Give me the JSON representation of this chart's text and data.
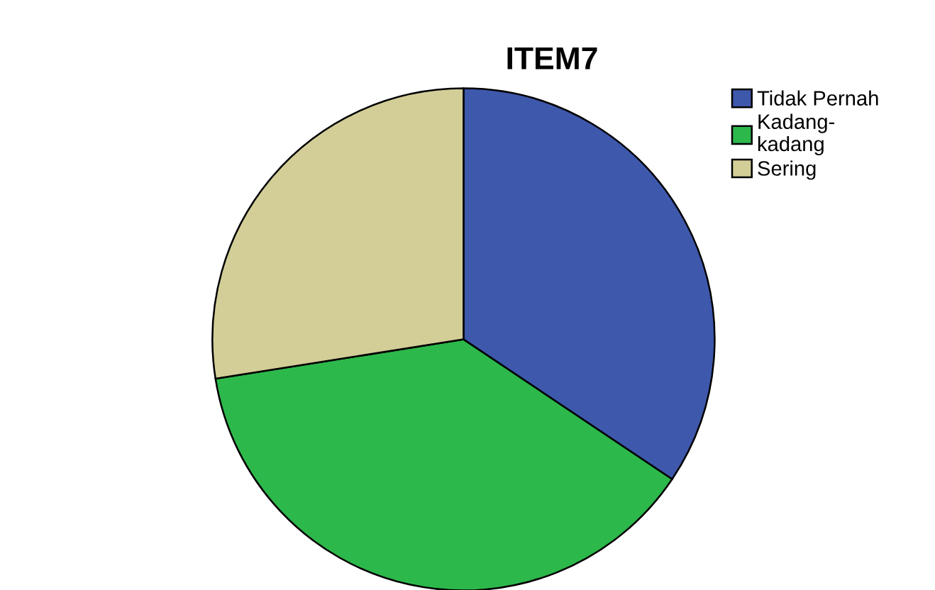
{
  "chart_data": {
    "type": "pie",
    "title": "ITEM7",
    "categories": [
      "Tidak Pernah",
      "Kadang-\nkadang",
      "Sering"
    ],
    "values": [
      34.4,
      38.1,
      27.5
    ],
    "colors": [
      "#3e58ac",
      "#2db84b",
      "#d3ce97"
    ],
    "legend": "top right"
  }
}
